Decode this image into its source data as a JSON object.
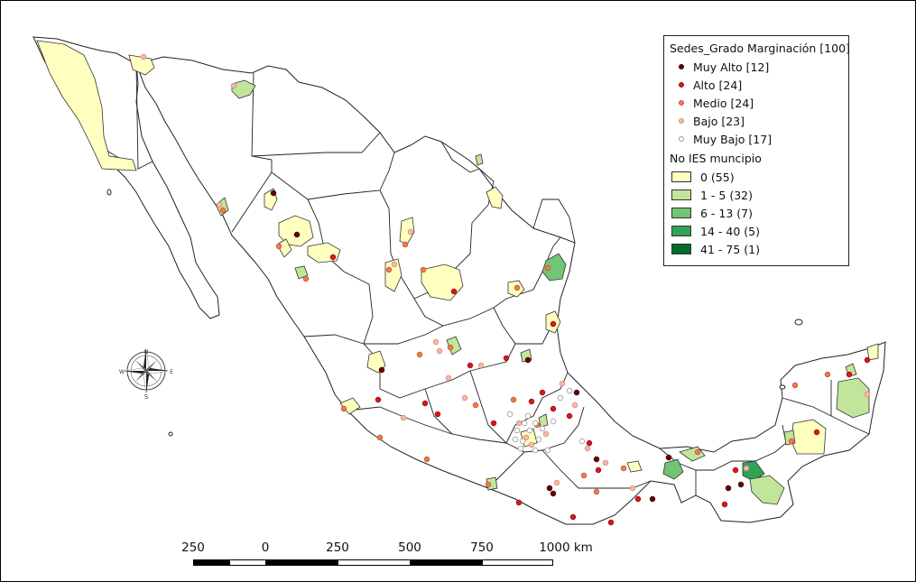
{
  "legend": {
    "points_title": "Sedes_Grado Marginación [100]",
    "points": [
      {
        "label": "Muy Alto [12]",
        "color": "#6b0000",
        "border": "#3a0000"
      },
      {
        "label": "Alto [24]",
        "color": "#d7191c",
        "border": "#9a0f12"
      },
      {
        "label": "Medio [24]",
        "color": "#f07a50",
        "border": "#c4552f"
      },
      {
        "label": "Bajo [23]",
        "color": "#f7b8a8",
        "border": "#d98a7a"
      },
      {
        "label": "Muy Bajo [17]",
        "color": "#ffffff",
        "border": "#999999"
      }
    ],
    "areas_title": "No IES muncipio",
    "areas": [
      {
        "label": "0 (55)",
        "color": "#ffffc0"
      },
      {
        "label": "1 - 5 (32)",
        "color": "#c2e59c"
      },
      {
        "label": "6 - 13 (7)",
        "color": "#74c476"
      },
      {
        "label": "14 - 40 (5)",
        "color": "#31a354"
      },
      {
        "label": "41 - 75 (1)",
        "color": "#006d2c"
      }
    ]
  },
  "scale": {
    "labels": [
      "250",
      "0",
      "250",
      "500",
      "750",
      "1000 km"
    ]
  },
  "compass": {
    "north": "N",
    "south": "S",
    "east": "E",
    "west": "W"
  }
}
